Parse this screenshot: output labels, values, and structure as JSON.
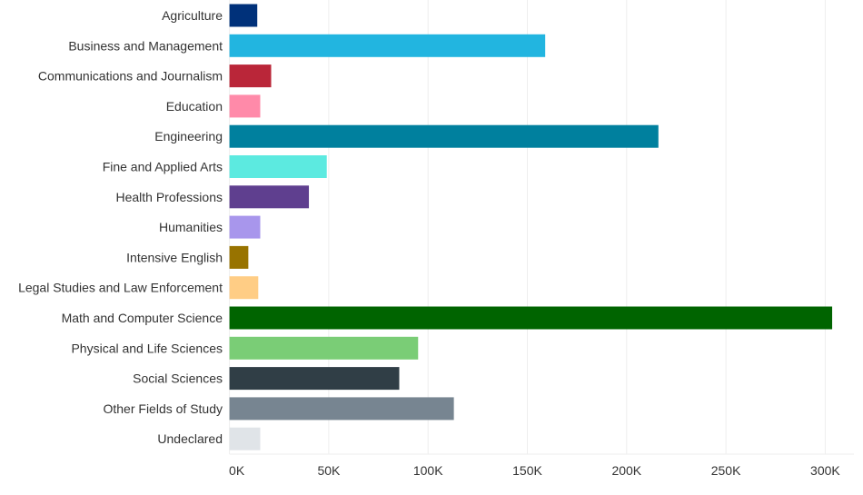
{
  "chart_data": {
    "type": "bar",
    "orientation": "horizontal",
    "categories": [
      "Agriculture",
      "Business and Management",
      "Communications and Journalism",
      "Education",
      "Engineering",
      "Fine and Applied Arts",
      "Health Professions",
      "Humanities",
      "Intensive English",
      "Legal Studies and Law Enforcement",
      "Math and Computer Science",
      "Physical and Life Sciences",
      "Social Sciences",
      "Other Fields of Study",
      "Undeclared"
    ],
    "values": [
      14000,
      159000,
      21000,
      15500,
      216000,
      49000,
      40000,
      15500,
      9500,
      14500,
      303500,
      95000,
      85500,
      113000,
      15500
    ],
    "colors": [
      "#00317a",
      "#22b5e0",
      "#ba2639",
      "#ff8aa9",
      "#00809e",
      "#5ceae0",
      "#5f3f8f",
      "#a896ec",
      "#987300",
      "#ffcd85",
      "#006400",
      "#7acd76",
      "#303e46",
      "#778591",
      "#e0e4e8"
    ],
    "xticks": [
      "0K",
      "50K",
      "100K",
      "150K",
      "200K",
      "250K",
      "300K"
    ],
    "tick_values": [
      0,
      50000,
      100000,
      150000,
      200000,
      250000,
      300000
    ],
    "xlim": [
      0,
      315000
    ],
    "grid": true,
    "title": "",
    "xlabel": "",
    "ylabel": ""
  }
}
